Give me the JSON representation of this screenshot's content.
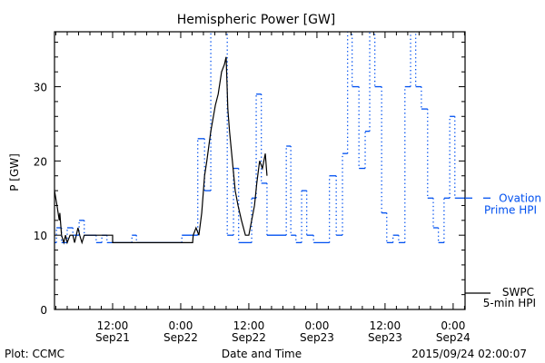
{
  "chart_data": {
    "type": "line",
    "title": "Hemispheric Power [GW]",
    "xlabel": "Date and Time",
    "ylabel": "P [GW]",
    "x_units": "hours since 2015-09-21 00:00",
    "xlim": [
      1.76,
      74.1
    ],
    "ylim": [
      0,
      37.4
    ],
    "yticks": [
      0,
      10,
      20,
      30
    ],
    "ytick_labels": [
      "0",
      "10",
      "20",
      "30"
    ],
    "xticks": [
      {
        "x": 12,
        "time": "12:00",
        "date": "Sep21"
      },
      {
        "x": 24,
        "time": "0:00",
        "date": "Sep22"
      },
      {
        "x": 36,
        "time": "12:00",
        "date": "Sep22"
      },
      {
        "x": 48,
        "time": "0:00",
        "date": "Sep23"
      },
      {
        "x": 60,
        "time": "12:00",
        "date": "Sep23"
      },
      {
        "x": 72,
        "time": "0:00",
        "date": "Sep24"
      }
    ],
    "series": [
      {
        "name": "Ovation Prime HPI",
        "legend_lines": [
          "Ovation",
          "Prime HPI"
        ],
        "color": "#0050f0",
        "style": "step",
        "end_x": 74.1,
        "steps": [
          [
            1.76,
            9
          ],
          [
            2.1,
            11
          ],
          [
            3.0,
            9
          ],
          [
            4.0,
            11
          ],
          [
            5.0,
            10
          ],
          [
            6.1,
            12
          ],
          [
            7.0,
            10
          ],
          [
            9.1,
            9
          ],
          [
            10.1,
            10
          ],
          [
            11.0,
            9
          ],
          [
            15.4,
            10
          ],
          [
            16.2,
            9
          ],
          [
            24.2,
            10
          ],
          [
            27.0,
            23
          ],
          [
            28.2,
            16
          ],
          [
            29.3,
            45
          ],
          [
            32.2,
            10
          ],
          [
            33.3,
            19
          ],
          [
            34.2,
            9
          ],
          [
            36.5,
            15
          ],
          [
            37.3,
            29
          ],
          [
            38.2,
            17
          ],
          [
            39.2,
            10
          ],
          [
            42.6,
            22
          ],
          [
            43.4,
            10
          ],
          [
            44.3,
            9
          ],
          [
            45.3,
            16
          ],
          [
            46.2,
            10
          ],
          [
            47.4,
            9
          ],
          [
            50.2,
            18
          ],
          [
            51.4,
            10
          ],
          [
            52.5,
            21
          ],
          [
            53.4,
            45
          ],
          [
            54.2,
            30
          ],
          [
            55.4,
            19
          ],
          [
            56.5,
            24
          ],
          [
            57.3,
            45
          ],
          [
            58.2,
            30
          ],
          [
            59.4,
            13
          ],
          [
            60.3,
            9
          ],
          [
            61.4,
            10
          ],
          [
            62.4,
            9
          ],
          [
            63.5,
            30
          ],
          [
            64.5,
            45
          ],
          [
            65.4,
            30
          ],
          [
            66.4,
            27
          ],
          [
            67.5,
            15
          ],
          [
            68.5,
            11
          ],
          [
            69.4,
            9
          ],
          [
            70.4,
            15
          ],
          [
            71.4,
            26
          ],
          [
            72.3,
            15
          ]
        ]
      },
      {
        "name": "SWPC 5-min HPI",
        "legend_lines": [
          "SWPC",
          "5-min HPI"
        ],
        "color": "#000000",
        "style": "line",
        "points": [
          [
            1.76,
            16
          ],
          [
            2.2,
            14
          ],
          [
            2.6,
            12
          ],
          [
            2.7,
            13
          ],
          [
            2.9,
            11
          ],
          [
            3.0,
            10
          ],
          [
            3.4,
            9
          ],
          [
            3.7,
            10
          ],
          [
            4.0,
            9
          ],
          [
            4.5,
            10
          ],
          [
            5.0,
            10
          ],
          [
            5.3,
            9
          ],
          [
            5.6,
            10
          ],
          [
            5.9,
            11
          ],
          [
            6.2,
            10
          ],
          [
            6.6,
            9
          ],
          [
            7.0,
            10
          ],
          [
            12.0,
            10
          ],
          [
            12.0,
            9
          ],
          [
            26.1,
            9
          ],
          [
            26.2,
            10
          ],
          [
            26.7,
            11
          ],
          [
            27.2,
            10
          ],
          [
            27.7,
            13
          ],
          [
            28.2,
            18
          ],
          [
            28.6,
            20
          ],
          [
            29.3,
            24
          ],
          [
            30.1,
            27.5
          ],
          [
            30.6,
            29
          ],
          [
            31.2,
            32
          ],
          [
            31.7,
            33
          ],
          [
            32.0,
            34
          ],
          [
            32.3,
            27
          ],
          [
            32.6,
            24
          ],
          [
            33.1,
            20
          ],
          [
            33.6,
            16
          ],
          [
            34.1,
            14
          ],
          [
            34.7,
            12
          ],
          [
            35.4,
            10
          ],
          [
            36.0,
            10
          ],
          [
            36.5,
            12
          ],
          [
            37.0,
            14
          ],
          [
            37.4,
            17
          ],
          [
            37.9,
            20
          ],
          [
            38.4,
            19
          ],
          [
            38.9,
            21
          ],
          [
            39.2,
            18
          ]
        ]
      }
    ]
  },
  "footer": {
    "left": "Plot: CCMC",
    "right": "2015/09/24 02:00:07"
  }
}
